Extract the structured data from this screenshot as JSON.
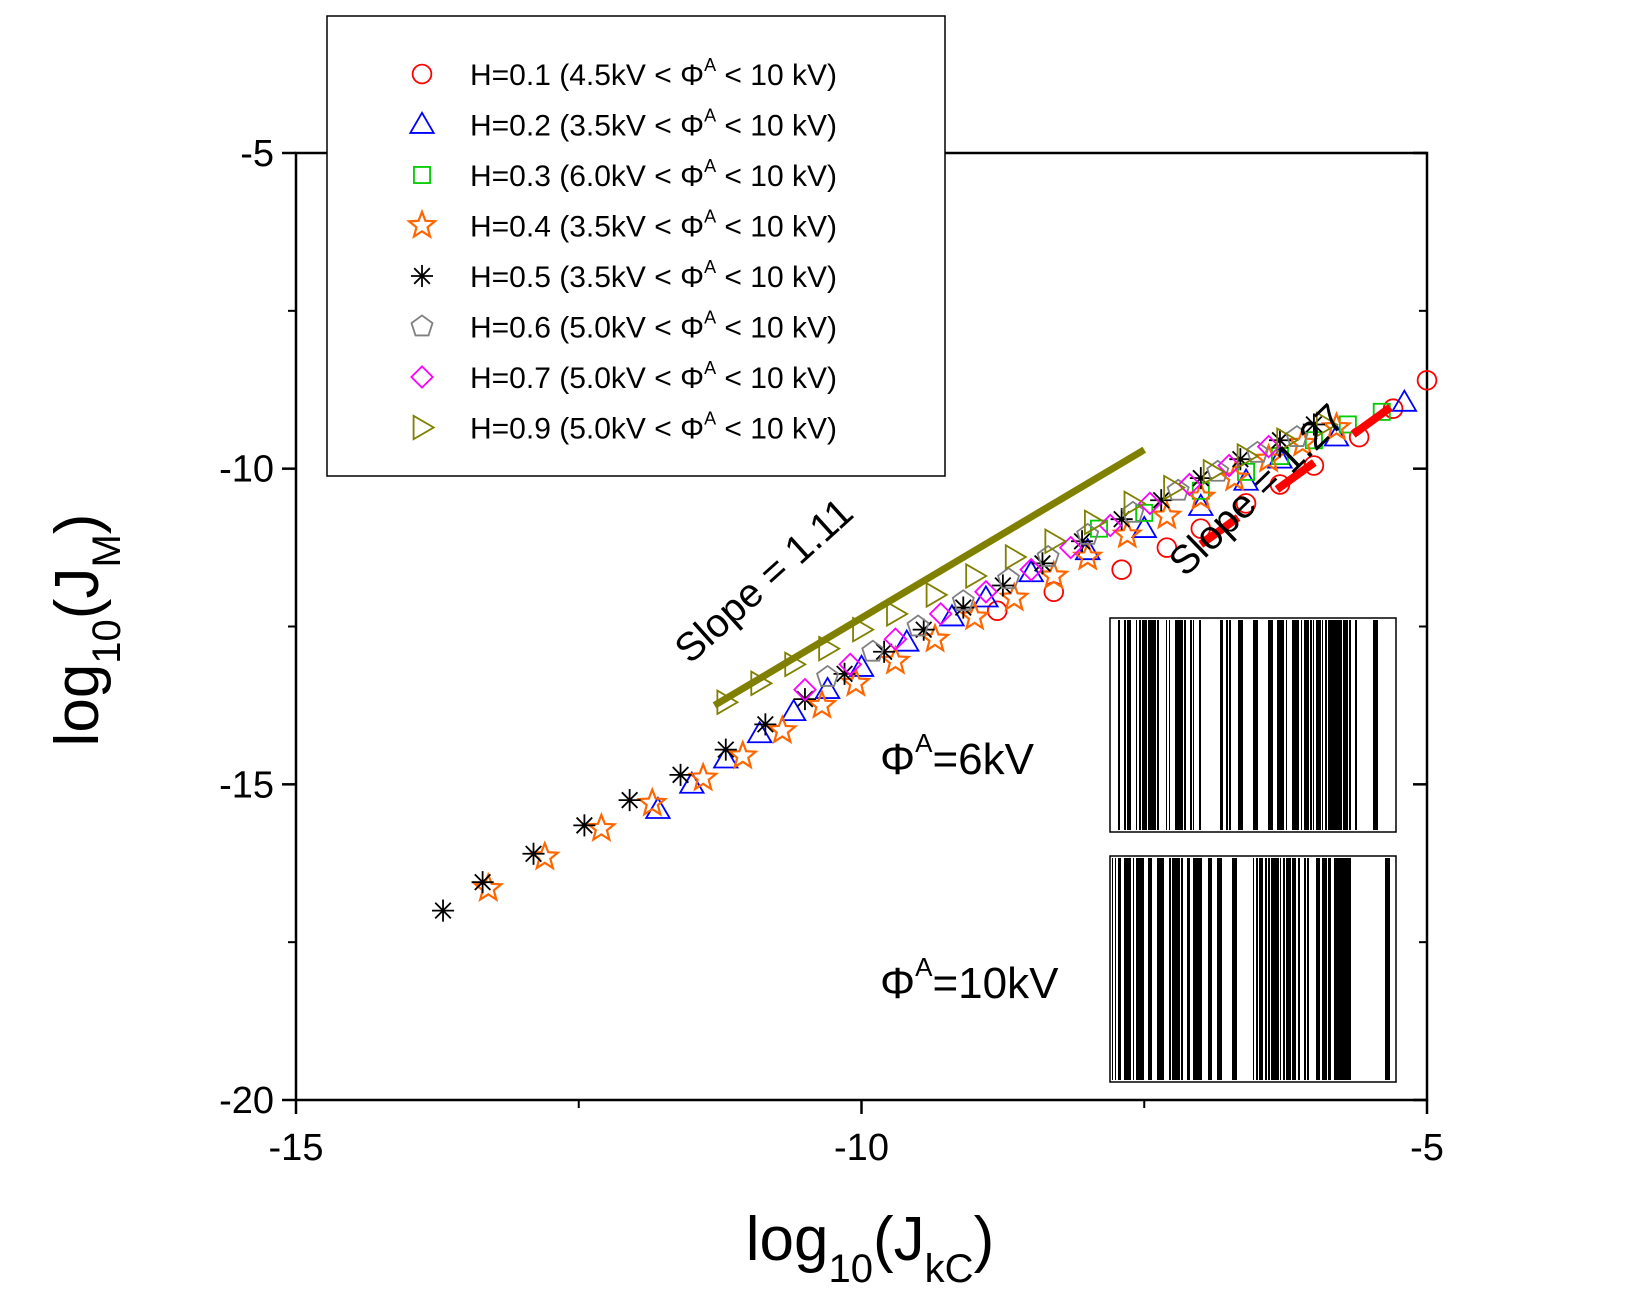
{
  "chart_data": {
    "type": "scatter",
    "xlabel": {
      "base": "log",
      "sub1": "10",
      "paren_open": "(J",
      "sub2": "kC",
      "paren_close": ")"
    },
    "ylabel": {
      "base": "log",
      "sub1": "10",
      "paren_open": "(J",
      "sub2": "M",
      "paren_close": ")"
    },
    "xlim": [
      -15,
      -5
    ],
    "ylim": [
      -20,
      -5
    ],
    "x_ticks": [
      -15,
      -10,
      -5
    ],
    "y_ticks": [
      -5,
      -10,
      -15,
      -20
    ],
    "grid": false,
    "legend_position": "top-left",
    "series": [
      {
        "name": "H=0.1 (4.5kV < Φ^A < 10 kV)",
        "legend_main": "H=0.1 (4.5kV < Φ",
        "legend_sup": "A",
        "legend_end": " < 10 kV)",
        "marker": "circle",
        "color": "#ff0000",
        "x": [
          -8.8,
          -8.3,
          -7.7,
          -7.3,
          -7.0,
          -6.6,
          -6.3,
          -6.0,
          -5.6,
          -5.3,
          -5.0
        ],
        "y": [
          -12.25,
          -11.95,
          -11.6,
          -11.25,
          -10.95,
          -10.55,
          -10.25,
          -9.95,
          -9.5,
          -9.05,
          -8.6
        ]
      },
      {
        "name": "H=0.2 (3.5kV < Φ^A < 10 kV)",
        "legend_main": "H=0.2 (3.5kV < Φ",
        "legend_sup": "A",
        "legend_end": " < 10 kV)",
        "marker": "triangle-up",
        "color": "#0000ff",
        "x": [
          -11.8,
          -11.5,
          -11.2,
          -10.9,
          -10.6,
          -10.3,
          -10.0,
          -9.6,
          -9.2,
          -8.9,
          -8.5,
          -8.0,
          -7.5,
          -7.0,
          -6.6,
          -6.3,
          -5.8,
          -5.2
        ],
        "y": [
          -15.4,
          -15.0,
          -14.6,
          -14.2,
          -13.85,
          -13.5,
          -13.15,
          -12.75,
          -12.35,
          -12.05,
          -11.65,
          -11.3,
          -10.95,
          -10.6,
          -10.2,
          -9.85,
          -9.5,
          -8.95
        ]
      },
      {
        "name": "H=0.3 (6.0kV < Φ^A < 10 kV)",
        "legend_main": "H=0.3 (6.0kV < Φ",
        "legend_sup": "A",
        "legend_end": " < 10 kV)",
        "marker": "square",
        "color": "#00cc00",
        "x": [
          -7.9,
          -7.5,
          -7.0,
          -6.6,
          -6.3,
          -6.0,
          -5.7,
          -5.4
        ],
        "y": [
          -10.95,
          -10.7,
          -10.35,
          -10.05,
          -9.8,
          -9.55,
          -9.3,
          -9.1
        ]
      },
      {
        "name": "H=0.4 (3.5kV < Φ^A < 10 kV)",
        "legend_main": "H=0.4 (3.5kV < Φ",
        "legend_sup": "A",
        "legend_end": " < 10 kV)",
        "marker": "star",
        "color": "#ff6600",
        "x": [
          -13.3,
          -12.8,
          -12.3,
          -11.85,
          -11.4,
          -11.05,
          -10.7,
          -10.35,
          -10.05,
          -9.7,
          -9.35,
          -9.0,
          -8.65,
          -8.3,
          -8.0,
          -7.65,
          -7.3,
          -7.0,
          -6.7,
          -6.4,
          -6.1,
          -5.8
        ],
        "y": [
          -16.65,
          -16.15,
          -15.7,
          -15.3,
          -14.9,
          -14.55,
          -14.15,
          -13.75,
          -13.4,
          -13.05,
          -12.7,
          -12.35,
          -12.05,
          -11.7,
          -11.4,
          -11.05,
          -10.75,
          -10.45,
          -10.15,
          -9.85,
          -9.6,
          -9.35
        ]
      },
      {
        "name": "H=0.5 (3.5kV < Φ^A < 10 kV)",
        "legend_main": "H=0.5 (3.5kV < Φ",
        "legend_sup": "A",
        "legend_end": " < 10 kV)",
        "marker": "asterisk",
        "color": "#000000",
        "x": [
          -13.7,
          -13.35,
          -12.9,
          -12.45,
          -12.05,
          -11.6,
          -11.2,
          -10.85,
          -10.5,
          -10.15,
          -9.8,
          -9.45,
          -9.1,
          -8.75,
          -8.4,
          -8.05,
          -7.7,
          -7.35,
          -7.0,
          -6.65,
          -6.3,
          -6.0
        ],
        "y": [
          -17.0,
          -16.55,
          -16.1,
          -15.65,
          -15.25,
          -14.85,
          -14.45,
          -14.05,
          -13.65,
          -13.25,
          -12.9,
          -12.55,
          -12.2,
          -11.85,
          -11.5,
          -11.15,
          -10.8,
          -10.5,
          -10.15,
          -9.85,
          -9.55,
          -9.3
        ]
      },
      {
        "name": "H=0.6 (5.0kV < Φ^A < 10 kV)",
        "legend_main": "H=0.6 (5.0kV < Φ",
        "legend_sup": "A",
        "legend_end": " < 10 kV)",
        "marker": "pentagon",
        "color": "#808080",
        "x": [
          -10.3,
          -9.9,
          -9.5,
          -9.1,
          -8.7,
          -8.35,
          -8.0,
          -7.6,
          -7.2,
          -6.85,
          -6.5,
          -6.15
        ],
        "y": [
          -13.3,
          -12.9,
          -12.5,
          -12.1,
          -11.75,
          -11.4,
          -11.05,
          -10.7,
          -10.35,
          -10.05,
          -9.75,
          -9.5
        ]
      },
      {
        "name": "H=0.7 (5.0kV < Φ^A < 10 kV)",
        "legend_main": "H=0.7 (5.0kV < Φ",
        "legend_sup": "A",
        "legend_end": " < 10 kV)",
        "marker": "diamond",
        "color": "#ff00ff",
        "x": [
          -10.5,
          -10.1,
          -9.7,
          -9.3,
          -8.9,
          -8.5,
          -8.15,
          -7.8,
          -7.45,
          -7.1,
          -6.75,
          -6.4
        ],
        "y": [
          -13.5,
          -13.1,
          -12.7,
          -12.3,
          -11.95,
          -11.6,
          -11.25,
          -10.9,
          -10.55,
          -10.25,
          -9.95,
          -9.65
        ]
      },
      {
        "name": "H=0.9 (5.0kV < Φ^A < 10 kV)",
        "legend_main": "H=0.9 (5.0kV < Φ",
        "legend_sup": "A",
        "legend_end": " < 10 kV)",
        "marker": "triangle-right",
        "color": "#808000",
        "x": [
          -11.2,
          -10.9,
          -10.6,
          -10.3,
          -10.0,
          -9.7,
          -9.35,
          -9.0,
          -8.65,
          -8.3,
          -7.95,
          -7.6,
          -7.25,
          -6.9,
          -6.6,
          -6.25,
          -5.9
        ],
        "y": [
          -13.7,
          -13.4,
          -13.1,
          -12.85,
          -12.55,
          -12.3,
          -12.0,
          -11.7,
          -11.4,
          -11.15,
          -10.85,
          -10.55,
          -10.3,
          -10.05,
          -9.8,
          -9.55,
          -9.3
        ]
      }
    ],
    "fit_lines": [
      {
        "label": "Slope = 1.11",
        "slope": 1.11,
        "x": [
          -11.3,
          -7.5
        ],
        "y": [
          -13.75,
          -9.7
        ],
        "color": "#808000",
        "style": "solid"
      },
      {
        "label": "Slope = 1.27",
        "slope": 1.27,
        "x": [
          -7.0,
          -5.3
        ],
        "y": [
          -11.2,
          -9.0
        ],
        "color": "#ff0000",
        "style": "dashed"
      }
    ],
    "insets": [
      {
        "label_main": "Φ",
        "label_sup": "A",
        "label_end": "=6kV"
      },
      {
        "label_main": "Φ",
        "label_sup": "A",
        "label_end": "=10kV"
      }
    ]
  }
}
